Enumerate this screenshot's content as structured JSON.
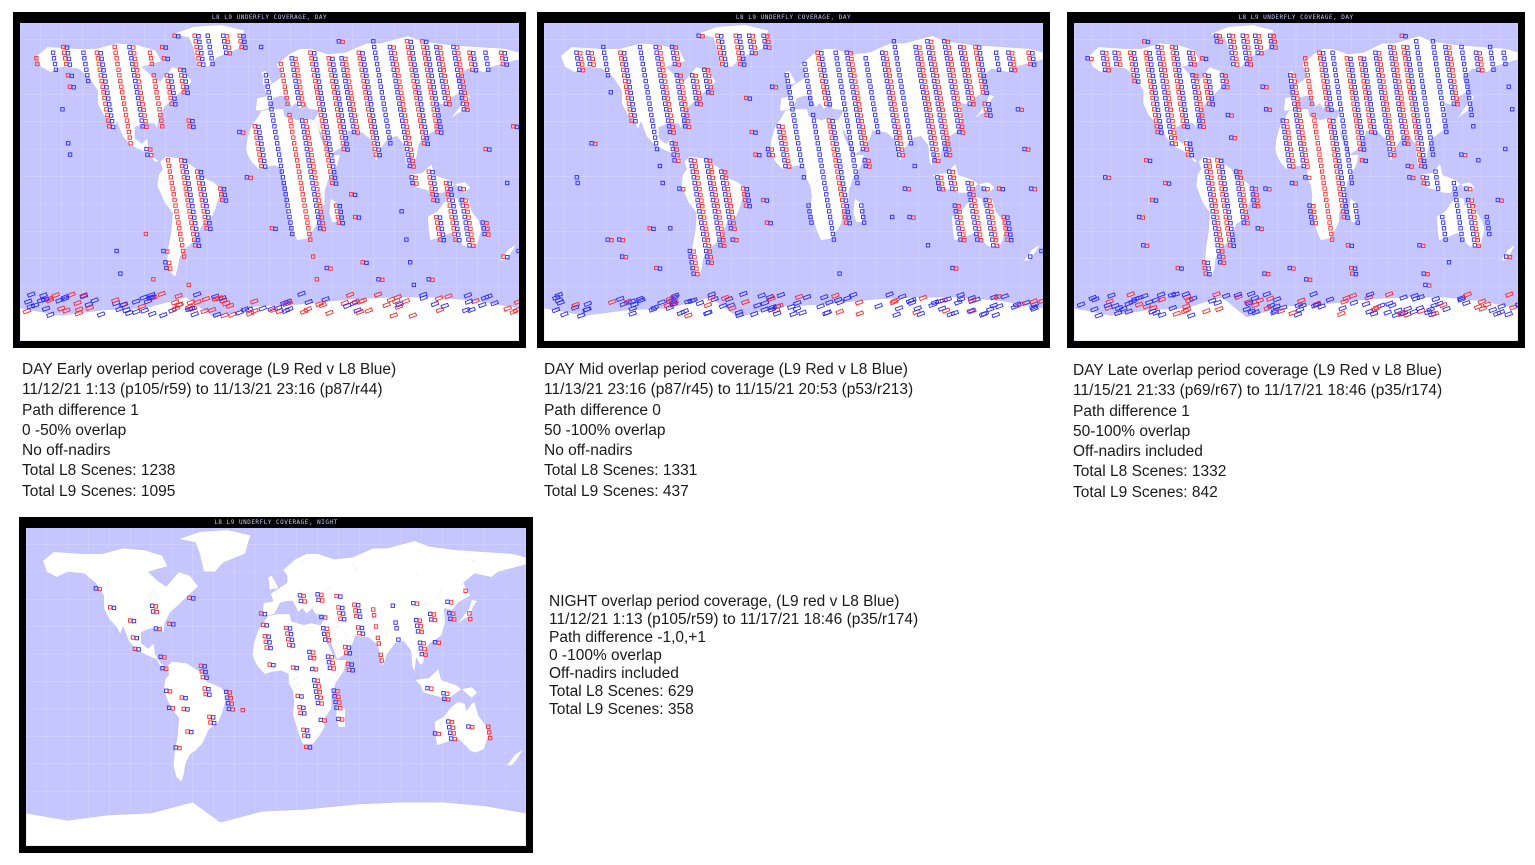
{
  "colors": {
    "ocean": "#c5c5ff",
    "land": "#ffffff",
    "frame": "#000000",
    "l9": "#ff2a2a",
    "l8": "#2a2aff",
    "grid": "#d8d8ff"
  },
  "panels": [
    {
      "id": "day-early",
      "map_title": "L8 L9 UNDERFLY COVERAGE, DAY",
      "caption": [
        "DAY Early overlap period coverage (L9 Red v L8 Blue)",
        "11/12/21 1:13 (p105/r59) to 11/13/21 23:16 (p87/r44)",
        "Path difference 1",
        "0 -50% overlap",
        "No off-nadirs",
        "Total L8 Scenes: 1238",
        "Total L9 Scenes: 1095"
      ],
      "red_ratio": 0.47
    },
    {
      "id": "day-mid",
      "map_title": "L8 L9 UNDERFLY COVERAGE, DAY",
      "caption": [
        "DAY Mid overlap period coverage (L9 Red v L8 Blue)",
        "11/13/21 23:16 (p87/r45) to 11/15/21 20:53 (p53/r213)",
        "Path difference 0",
        "50 -100% overlap",
        "No off-nadirs",
        "Total L8 Scenes: 1331",
        "Total L9 Scenes: 437"
      ],
      "red_ratio": 0.25
    },
    {
      "id": "day-late",
      "map_title": "L8 L9 UNDERFLY COVERAGE, DAY",
      "caption": [
        "DAY Late overlap period coverage (L9 Red v L8 Blue)",
        "11/15/21 21:33 (p69/r67) to 11/17/21 18:46 (p35/r174)",
        "Path difference 1",
        "50-100% overlap",
        "Off-nadirs included",
        "Total L8 Scenes: 1332",
        "Total L9 Scenes: 842"
      ],
      "red_ratio": 0.38
    },
    {
      "id": "night",
      "map_title": "L8 L9 UNDERFLY COVERAGE, NIGHT",
      "caption": [
        "NIGHT overlap period coverage, (L9 red v L8 Blue)",
        "11/12/21 1:13 (p105/r59) to 11/17/21 18:46 (p35/r174)",
        "Path difference -1,0,+1",
        "0 -100% overlap",
        "Off-nadirs included",
        "Total L8 Scenes: 629",
        "Total L9 Scenes: 358"
      ],
      "red_ratio": 0.36
    }
  ]
}
